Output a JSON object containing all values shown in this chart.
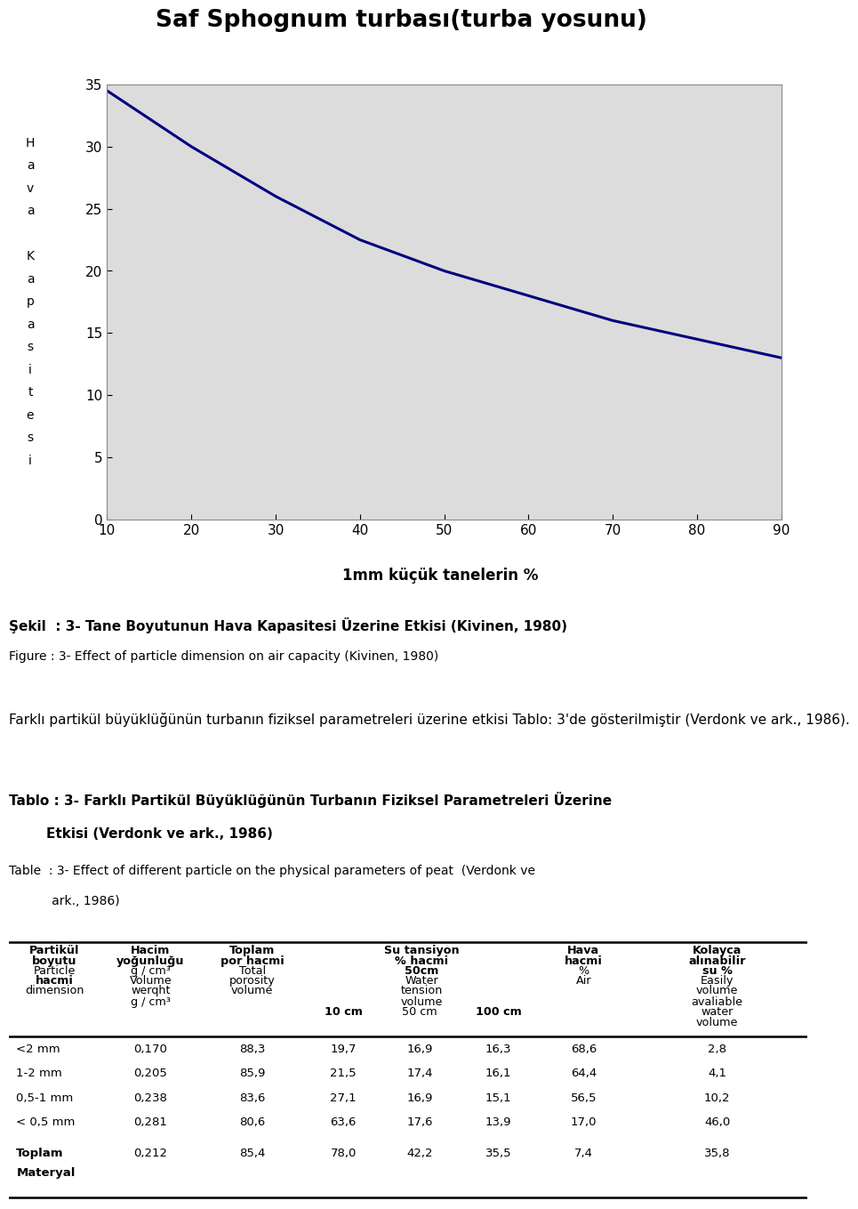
{
  "title": "Saf Sphognum turbası(turba yosunu)",
  "ylabel_chars": [
    "H",
    "a",
    "v",
    "a",
    "",
    "K",
    "a",
    "p",
    "a",
    "s",
    "i",
    "t",
    "e",
    "s",
    "i"
  ],
  "xlabel": "1mm küçük tanelerin %",
  "x_ticks": [
    10,
    20,
    30,
    40,
    50,
    60,
    70,
    80,
    90
  ],
  "y_ticks": [
    0,
    5,
    10,
    15,
    20,
    25,
    30,
    35
  ],
  "xlim": [
    10,
    90
  ],
  "ylim": [
    0,
    35
  ],
  "line_x": [
    10,
    20,
    30,
    40,
    50,
    60,
    70,
    80,
    90
  ],
  "line_y": [
    34.5,
    30.0,
    26.0,
    22.5,
    20.0,
    18.0,
    16.0,
    14.5,
    13.0
  ],
  "line_color": "#000080",
  "bg_color": "#dcdcdc",
  "chart_bg": "#ffffff",
  "caption_line1_bold": "Şekil  : 3- Tane Boyutunun Hava Kapasitesi Üzerine Etkisi (Kivinen, 1980)",
  "caption_line2": "Figure : 3- Effect of particle dimension on air capacity (Kivinen, 1980)",
  "body_text": "Farklı partikül büyüklüğünün turbanın fiziksel parametreleri üzerine etkisi Tablo: 3'de gösterilmiştir (Verdonk ve ark., 1986).",
  "tablo_title1_bold": "Tablo : 3- Farklı Partikül Büyüklüğünün Turbanın Fiziksel Parametreleri Üzerine",
  "tablo_title2_bold": "        Etkisi (Verdonk ve ark., 1986)",
  "tablo_title3": "Table  : 3- Effect of different particle on the physical parameters of peat  (Verdonk ve",
  "tablo_title4": "           ark., 1986)",
  "table_rows": [
    [
      "<2 mm",
      "0,170",
      "88,3",
      "19,7",
      "16,9",
      "16,3",
      "68,6",
      "2,8"
    ],
    [
      "1-2 mm",
      "0,205",
      "85,9",
      "21,5",
      "17,4",
      "16,1",
      "64,4",
      "4,1"
    ],
    [
      "0,5-1 mm",
      "0,238",
      "83,6",
      "27,1",
      "16,9",
      "15,1",
      "56,5",
      "10,2"
    ],
    [
      "< 0,5 mm",
      "0,281",
      "80,6",
      "63,6",
      "17,6",
      "13,9",
      "17,0",
      "46,0"
    ],
    [
      "Toplam\nMateryal",
      "0,212",
      "85,4",
      "78,0",
      "42,2",
      "35,5",
      "7,4",
      "35,8"
    ]
  ]
}
